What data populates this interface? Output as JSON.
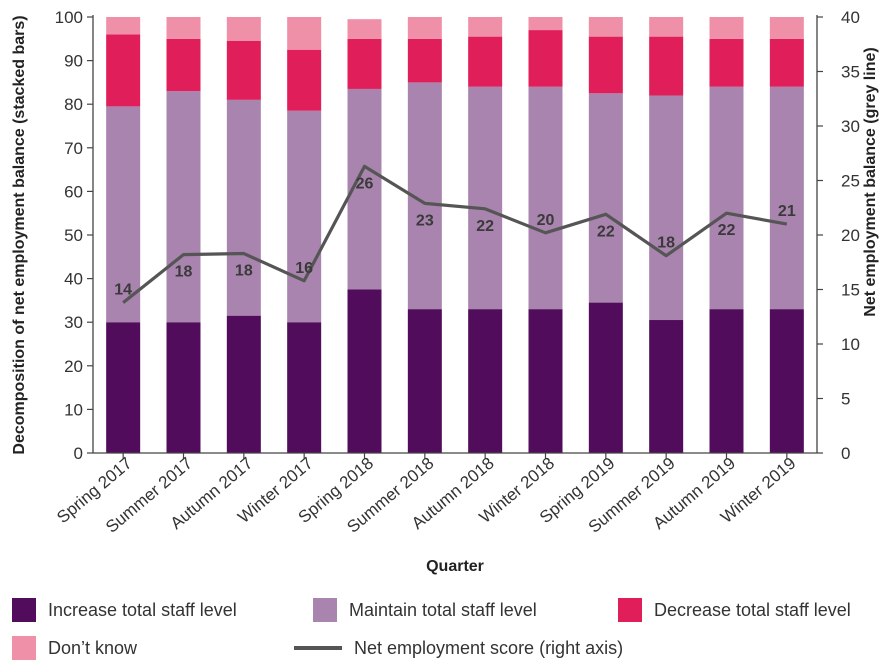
{
  "chart_data": {
    "type": "bar",
    "stacked": true,
    "xlabel": "Quarter",
    "ylabel": "Decomposition of net employment balance (stacked bars)",
    "y2label": "Net employment balance (grey line)",
    "ylim": [
      0,
      100
    ],
    "y2lim": [
      0,
      40
    ],
    "yticks": [
      0,
      10,
      20,
      30,
      40,
      50,
      60,
      70,
      80,
      90,
      100
    ],
    "y2ticks": [
      0,
      5,
      10,
      15,
      20,
      25,
      30,
      35,
      40
    ],
    "categories": [
      "Spring 2017",
      "Summer 2017",
      "Autumn 2017",
      "Winter 2017",
      "Spring 2018",
      "Summer 2018",
      "Autumn 2018",
      "Winter 2018",
      "Spring 2019",
      "Summer 2019",
      "Autumn 2019",
      "Winter 2019"
    ],
    "series": [
      {
        "name": "Increase total staff level",
        "color": "#520c5c",
        "values": [
          30,
          30,
          31.5,
          30,
          37.5,
          33,
          33,
          33,
          34.5,
          30.5,
          33,
          33
        ]
      },
      {
        "name": "Maintain total staff level",
        "color": "#a884ae",
        "values": [
          49.5,
          53,
          49.5,
          48.5,
          46,
          52,
          51,
          51,
          48,
          51.5,
          51,
          51
        ]
      },
      {
        "name": "Decrease total staff level",
        "color": "#e01e5a",
        "values": [
          16.5,
          12,
          13.5,
          14,
          11.5,
          10,
          11.5,
          13,
          13,
          13.5,
          11,
          11
        ]
      },
      {
        "name": "Don’t know",
        "color": "#ef8fa8",
        "values": [
          4,
          5,
          5.5,
          7.5,
          4.5,
          5,
          4.5,
          3,
          4.5,
          4.5,
          5,
          5
        ]
      }
    ],
    "line": {
      "name": "Net employment score (right axis)",
      "color": "#555555",
      "values": [
        14,
        18,
        18,
        16,
        26,
        23,
        22,
        20,
        22,
        18,
        22,
        21
      ],
      "plot_values": [
        13.8,
        18.2,
        18.3,
        15.8,
        26.3,
        22.9,
        22.4,
        20.2,
        21.9,
        18.1,
        22.0,
        21.0
      ],
      "labels": [
        "14",
        "18",
        "18",
        "16",
        "26",
        "23",
        "22",
        "20",
        "22",
        "18",
        "22",
        "21"
      ]
    },
    "grid": false,
    "legend_position": "bottom"
  }
}
